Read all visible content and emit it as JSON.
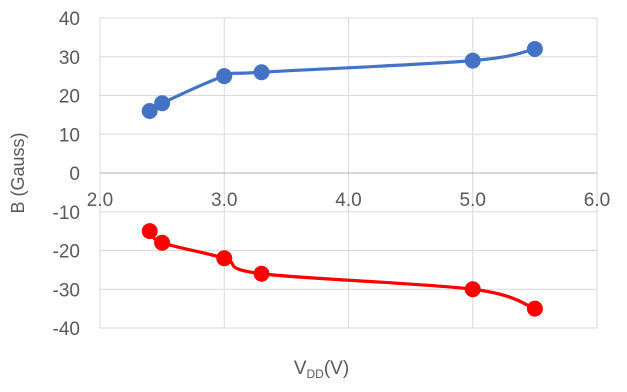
{
  "chart_data": {
    "type": "scatter",
    "title": "",
    "xlabel": {
      "main": "V",
      "sub": "DD",
      "tail": "(V)"
    },
    "ylabel": "B (Gauss)",
    "xlim": [
      2.0,
      6.0
    ],
    "ylim": [
      -40,
      40
    ],
    "x_ticks": [
      "2.0",
      "3.0",
      "4.0",
      "5.0",
      "6.0"
    ],
    "y_ticks": [
      "40",
      "30",
      "20",
      "10",
      "0",
      "-10",
      "-20",
      "-30",
      "-40"
    ],
    "grid": true,
    "legend": "none",
    "series": [
      {
        "color": "#4472c4",
        "smooth": true,
        "points": [
          [
            2.4,
            16
          ],
          [
            2.5,
            18
          ],
          [
            3.0,
            25
          ],
          [
            3.3,
            26
          ],
          [
            5.0,
            29
          ],
          [
            5.5,
            32
          ]
        ]
      },
      {
        "color": "#ff0000",
        "smooth": true,
        "points": [
          [
            2.4,
            -15
          ],
          [
            2.5,
            -18
          ],
          [
            3.0,
            -22
          ],
          [
            3.3,
            -26
          ],
          [
            5.0,
            -30
          ],
          [
            5.5,
            -35
          ]
        ]
      }
    ]
  }
}
